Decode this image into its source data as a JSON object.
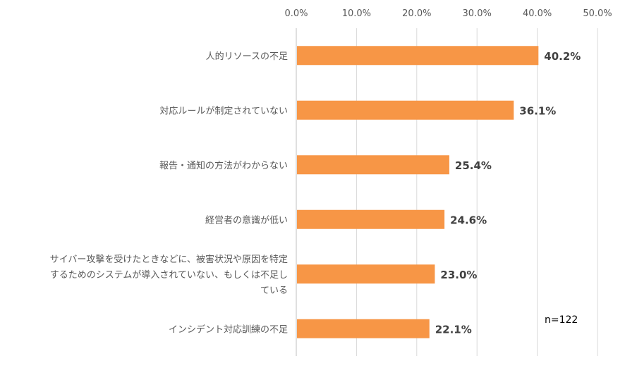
{
  "chart_data": {
    "type": "bar",
    "orientation": "horizontal",
    "categories": [
      "人的リソースの不足",
      "対応ルールが制定されていない",
      "報告・通知の方法がわからない",
      "経営者の意識が低い",
      "サイバー攻撃を受けたときなどに、被害状況や原因を特定するためのシステムが導入されていない、もしくは不足している",
      "インシデント対応訓練の不足"
    ],
    "category_lines": [
      [
        "人的リソースの不足"
      ],
      [
        "対応ルールが制定されていない"
      ],
      [
        "報告・通知の方法がわからない"
      ],
      [
        "経営者の意識が低い"
      ],
      [
        "サイバー攻撃を受けたときなどに、被害状況や原因を特定",
        "するためのシステムが導入されていない、もしくは不足し",
        "ている"
      ],
      [
        "インシデント対応訓練の不足"
      ]
    ],
    "values": [
      40.2,
      36.1,
      25.4,
      24.6,
      23.0,
      22.1
    ],
    "data_labels": [
      "40.2%",
      "36.1%",
      "25.4%",
      "24.6%",
      "23.0%",
      "22.1%"
    ],
    "xlim": [
      0,
      50
    ],
    "ticks": [
      0,
      10,
      20,
      30,
      40,
      50
    ],
    "tick_labels": [
      "0.0%",
      "10.0%",
      "20.0%",
      "30.0%",
      "40.0%",
      "50.0%"
    ],
    "axis_position": "top",
    "grid": true,
    "bar_color": "#F79646",
    "grid_color": "#D9D9D9",
    "annotation": "n=122"
  }
}
